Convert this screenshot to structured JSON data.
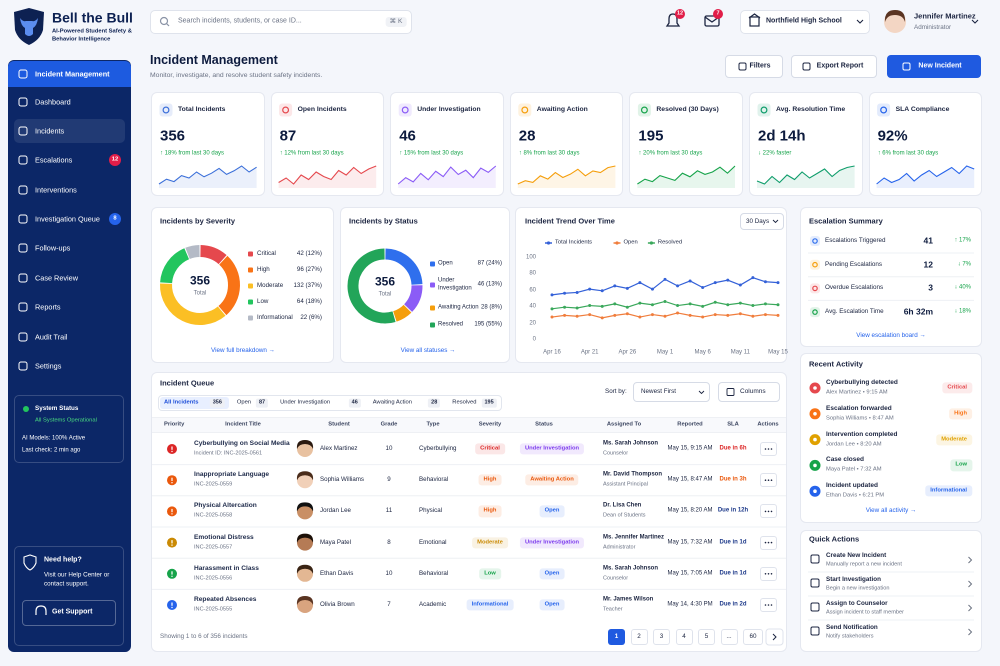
{
  "brand": {
    "name": "Bell the Bull",
    "tagline": "AI-Powered Student Safety & Behavior Intelligence"
  },
  "search": {
    "placeholder": "Search incidents, students, or case ID...",
    "shortcut": "⌘ K"
  },
  "topbar": {
    "notifications": 12,
    "messages": 7,
    "school": "Northfield High School",
    "user": {
      "name": "Jennifer Martinez",
      "role": "Administrator"
    }
  },
  "nav": [
    {
      "label": "Incident Management",
      "highlight": "strong"
    },
    {
      "label": "Dashboard"
    },
    {
      "label": "Incidents",
      "highlight": "soft"
    },
    {
      "label": "Escalations",
      "badge": 12,
      "badge_color": "#e11d48"
    },
    {
      "label": "Interventions"
    },
    {
      "label": "Investigation Queue",
      "badge": 8,
      "badge_color": "#2563eb"
    },
    {
      "label": "Follow-ups"
    },
    {
      "label": "Case Review"
    },
    {
      "label": "Reports"
    },
    {
      "label": "Audit Trail"
    },
    {
      "label": "Settings"
    }
  ],
  "system_status": {
    "title": "System Status",
    "status": "All Systems Operational",
    "models": "AI Models: 100% Active",
    "last_check": "Last check: 2 min ago"
  },
  "help": {
    "title": "Need help?",
    "text": "Visit our Help Center or contact support.",
    "button": "Get Support"
  },
  "page": {
    "title": "Incident Management",
    "subtitle": "Monitor, investigate, and resolve student safety incidents.",
    "actions": [
      {
        "label": "Filters",
        "primary": false
      },
      {
        "label": "Export Report",
        "primary": false
      },
      {
        "label": "New Incident",
        "primary": true
      }
    ]
  },
  "kpis": [
    {
      "label": "Total Incidents",
      "value": 356,
      "change": "↑ 18% from last 30 days",
      "color": "#3b6fd9",
      "spark": [
        20,
        24,
        22,
        27,
        25,
        30,
        26,
        29,
        33,
        28,
        31,
        35,
        30,
        34
      ]
    },
    {
      "label": "Open Incidents",
      "value": 87,
      "change": "↑ 12% from last 30 days",
      "color": "#e5484d",
      "spark": [
        22,
        25,
        21,
        27,
        24,
        29,
        26,
        24,
        30,
        27,
        32,
        28,
        31,
        33
      ]
    },
    {
      "label": "Under Investigation",
      "value": 46,
      "change": "↑ 15% from last 30 days",
      "color": "#8b5cf6",
      "spark": [
        18,
        24,
        20,
        28,
        22,
        30,
        25,
        34,
        27,
        31,
        24,
        33,
        29,
        35
      ]
    },
    {
      "label": "Awaiting Action",
      "value": 28,
      "change": "↑ 8% from last 30 days",
      "color": "#f59e0b",
      "spark": [
        20,
        22,
        21,
        25,
        23,
        27,
        24,
        26,
        29,
        25,
        28,
        27,
        30,
        31
      ]
    },
    {
      "label": "Resolved (30 Days)",
      "value": 195,
      "change": "↑ 20% from last 30 days",
      "color": "#16a34a",
      "spark": [
        19,
        23,
        21,
        26,
        24,
        22,
        28,
        25,
        30,
        27,
        29,
        33,
        28,
        34
      ]
    },
    {
      "label": "Avg. Resolution Time",
      "value": "2d 14h",
      "change": "↓ 22% faster",
      "color": "#0f9d6b",
      "spark": [
        22,
        20,
        25,
        21,
        26,
        23,
        28,
        24,
        27,
        30,
        25,
        29,
        31,
        32
      ]
    },
    {
      "label": "SLA Compliance",
      "value": "92%",
      "change": "↑ 6% from last 30 days",
      "color": "#2563eb",
      "spark": [
        21,
        25,
        22,
        24,
        28,
        23,
        27,
        30,
        26,
        29,
        32,
        28,
        33,
        31
      ]
    }
  ],
  "severity": {
    "title": "Incidents by Severity",
    "total": 356,
    "total_label": "Total",
    "link": "View full breakdown →",
    "items": [
      {
        "name": "Critical",
        "value": 42,
        "label": "42 (12%)",
        "color": "#e5484d"
      },
      {
        "name": "High",
        "value": 96,
        "label": "96 (27%)",
        "color": "#f97316"
      },
      {
        "name": "Moderate",
        "value": 132,
        "label": "132 (37%)",
        "color": "#fbbf24"
      },
      {
        "name": "Low",
        "value": 64,
        "label": "64 (18%)",
        "color": "#22c55e"
      },
      {
        "name": "Informational",
        "value": 22,
        "label": "22 (6%)",
        "color": "#b4bac6"
      }
    ]
  },
  "status": {
    "title": "Incidents by Status",
    "total": 356,
    "total_label": "Total",
    "link": "View all statuses →",
    "items": [
      {
        "name": "Open",
        "value": 87,
        "label": "87 (24%)",
        "color": "#2f6fed"
      },
      {
        "name": "Under Investigation",
        "value": 46,
        "label": "46 (13%)",
        "color": "#8b5cf6"
      },
      {
        "name": "Awaiting Action",
        "value": 28,
        "label": "28 (8%)",
        "color": "#f59e0b"
      },
      {
        "name": "Resolved",
        "value": 195,
        "label": "195 (55%)",
        "color": "#22a559"
      }
    ]
  },
  "trend": {
    "type": "line",
    "title": "Incident Trend Over Time",
    "range": "30 Days",
    "categories": [
      "Apr 16",
      null,
      null,
      "Apr 21",
      null,
      null,
      "Apr 26",
      null,
      null,
      "May 1",
      null,
      null,
      "May 6",
      null,
      null,
      "May 11",
      null,
      null,
      "May 15"
    ],
    "ylim": [
      0,
      100
    ],
    "yticks": [
      0,
      20,
      40,
      60,
      80,
      100
    ],
    "grid": false,
    "series": [
      {
        "name": "Total Incidents",
        "color": "#3461d8",
        "values": [
          55,
          57,
          58,
          62,
          60,
          66,
          63,
          70,
          62,
          74,
          66,
          72,
          64,
          70,
          73,
          67,
          76,
          71,
          70
        ]
      },
      {
        "name": "Open",
        "color": "#f07d3c",
        "values": [
          28,
          30,
          29,
          31,
          27,
          30,
          32,
          28,
          31,
          29,
          33,
          30,
          28,
          31,
          30,
          32,
          29,
          31,
          30
        ]
      },
      {
        "name": "Resolved",
        "color": "#3aa85b",
        "values": [
          38,
          40,
          39,
          42,
          41,
          44,
          40,
          45,
          43,
          47,
          42,
          44,
          41,
          46,
          43,
          45,
          42,
          44,
          43
        ]
      }
    ]
  },
  "escalation": {
    "title": "Escalation Summary",
    "link": "View escalation board →",
    "rows": [
      {
        "label": "Escalations Triggered",
        "value": "41",
        "change": "↑ 17%",
        "color": "#2f6fed"
      },
      {
        "label": "Pending Escalations",
        "value": "12",
        "change": "↓ 7%",
        "color": "#f59e0b"
      },
      {
        "label": "Overdue Escalations",
        "value": "3",
        "change": "↓ 40%",
        "color": "#e5484d"
      },
      {
        "label": "Avg. Escalation Time",
        "value": "6h 32m",
        "change": "↓ 18%",
        "color": "#16a34a"
      }
    ]
  },
  "activity": {
    "title": "Recent Activity",
    "link": "View all activity →",
    "items": [
      {
        "title": "Cyberbullying detected",
        "meta": "Alex Martinez • 9:15 AM",
        "tag": "Critical",
        "color": "#e5484d"
      },
      {
        "title": "Escalation forwarded",
        "meta": "Sophia Williams • 8:47 AM",
        "tag": "High",
        "color": "#f97316"
      },
      {
        "title": "Intervention completed",
        "meta": "Jordan Lee • 8:20 AM",
        "tag": "Moderate",
        "color": "#e0a100"
      },
      {
        "title": "Case closed",
        "meta": "Maya Patel • 7:32 AM",
        "tag": "Low",
        "color": "#16a34a"
      },
      {
        "title": "Incident updated",
        "meta": "Ethan Davis • 6:21 PM",
        "tag": "Informational",
        "color": "#2563eb"
      }
    ]
  },
  "quick_actions": {
    "title": "Quick Actions",
    "items": [
      {
        "title": "Create New Incident",
        "desc": "Manually report a new incident"
      },
      {
        "title": "Start Investigation",
        "desc": "Begin a new investigation"
      },
      {
        "title": "Assign to Counselor",
        "desc": "Assign incident to staff member"
      },
      {
        "title": "Send Notification",
        "desc": "Notify stakeholders"
      }
    ]
  },
  "queue": {
    "title": "Incident Queue",
    "tabs": [
      {
        "label": "All Incidents",
        "count": 356,
        "active": true
      },
      {
        "label": "Open",
        "count": 87
      },
      {
        "label": "Under Investigation",
        "count": 46
      },
      {
        "label": "Awaiting Action",
        "count": 28
      },
      {
        "label": "Resolved",
        "count": 195
      }
    ],
    "sort_label": "Sort by:",
    "sort": "Newest First",
    "columns_button": "Columns",
    "headers": [
      "Priority",
      "Incident Title",
      "Student",
      "Grade",
      "Type",
      "Severity",
      "Status",
      "Assigned To",
      "Reported",
      "SLA",
      "Actions"
    ],
    "rows": [
      {
        "title": "Cyberbullying on Social Media",
        "id": "Incident ID: INC-2025-0561",
        "student": "Alex Martinez",
        "grade": 10,
        "type": "Cyberbullying",
        "severity": "Critical",
        "severity_color": "#dc2626",
        "status": "Under Investigation",
        "status_color": "#7c3aed",
        "assignee": "Ms. Sarah Johnson",
        "assignee_role": "Counselor",
        "reported": "May 15, 9:15 AM",
        "sla": "Due in 6h",
        "sla_color": "#dc2626"
      },
      {
        "title": "Inappropriate Language",
        "id": "INC-2025-0559",
        "student": "Sophia Williams",
        "grade": 9,
        "type": "Behavioral",
        "severity": "High",
        "severity_color": "#ea580c",
        "status": "Awaiting Action",
        "status_color": "#ea580c",
        "assignee": "Mr. David Thompson",
        "assignee_role": "Assistant Principal",
        "reported": "May 15, 8:47 AM",
        "sla": "Due in 3h",
        "sla_color": "#ea580c"
      },
      {
        "title": "Physical Altercation",
        "id": "INC-2025-0558",
        "student": "Jordan Lee",
        "grade": 11,
        "type": "Physical",
        "severity": "High",
        "severity_color": "#ea580c",
        "status": "Open",
        "status_color": "#2563eb",
        "assignee": "Dr. Lisa Chen",
        "assignee_role": "Dean of Students",
        "reported": "May 15, 8:20 AM",
        "sla": "Due in 12h",
        "sla_color": "#1e3a8a"
      },
      {
        "title": "Emotional Distress",
        "id": "INC-2025-0557",
        "student": "Maya Patel",
        "grade": 8,
        "type": "Emotional",
        "severity": "Moderate",
        "severity_color": "#ca8a04",
        "status": "Under Investigation",
        "status_color": "#7c3aed",
        "assignee": "Ms. Jennifer Martinez",
        "assignee_role": "Administrator",
        "reported": "May 15, 7:32 AM",
        "sla": "Due in 1d",
        "sla_color": "#1e3a8a"
      },
      {
        "title": "Harassment in Class",
        "id": "INC-2025-0556",
        "student": "Ethan Davis",
        "grade": 10,
        "type": "Behavioral",
        "severity": "Low",
        "severity_color": "#16a34a",
        "status": "Open",
        "status_color": "#2563eb",
        "assignee": "Ms. Sarah Johnson",
        "assignee_role": "Counselor",
        "reported": "May 15, 7:05 AM",
        "sla": "Due in 1d",
        "sla_color": "#1e3a8a"
      },
      {
        "title": "Repeated Absences",
        "id": "INC-2025-0555",
        "student": "Olivia Brown",
        "grade": 7,
        "type": "Academic",
        "severity": "Informational",
        "severity_color": "#2563eb",
        "status": "Open",
        "status_color": "#2563eb",
        "assignee": "Mr. James Wilson",
        "assignee_role": "Teacher",
        "reported": "May 14, 4:30 PM",
        "sla": "Due in 2d",
        "sla_color": "#1e3a8a"
      }
    ],
    "footer": "Showing 1 to 6 of 356 incidents",
    "pages": [
      {
        "label": "1",
        "active": true
      },
      {
        "label": "2"
      },
      {
        "label": "3"
      },
      {
        "label": "4"
      },
      {
        "label": "5"
      },
      {
        "label": "..."
      },
      {
        "label": "60"
      }
    ]
  }
}
